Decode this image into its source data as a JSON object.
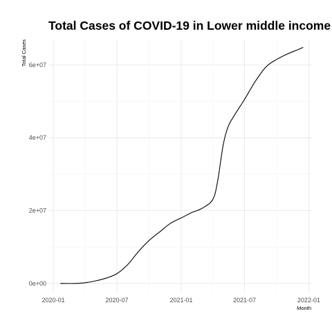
{
  "chart_data": {
    "type": "line",
    "title": "Total Cases of COVID-19 in Lower middle income",
    "xlabel": "Month",
    "ylabel": "Total Cases",
    "xlim": [
      "2019-12-20",
      "2022-01-10"
    ],
    "ylim": [
      -2500000,
      67000000
    ],
    "x_ticks": [
      "2020-01-01",
      "2020-07-01",
      "2021-01-01",
      "2021-07-01",
      "2022-01-01"
    ],
    "x_tick_labels": [
      "2020-01",
      "2020-07",
      "2021-01",
      "2021-07",
      "2022-01"
    ],
    "y_ticks": [
      0,
      20000000,
      40000000,
      60000000
    ],
    "y_tick_labels": [
      "0e+00",
      "2e+07",
      "4e+07",
      "6e+07"
    ],
    "grid": true,
    "legend": "none",
    "series": [
      {
        "color": "#000000",
        "x": [
          "2020-01-22",
          "2020-03-01",
          "2020-04-01",
          "2020-05-01",
          "2020-06-01",
          "2020-07-01",
          "2020-08-01",
          "2020-09-01",
          "2020-10-01",
          "2020-11-01",
          "2020-12-01",
          "2021-01-01",
          "2021-02-01",
          "2021-03-01",
          "2021-04-01",
          "2021-04-15",
          "2021-05-01",
          "2021-05-15",
          "2021-06-01",
          "2021-07-01",
          "2021-08-01",
          "2021-09-01",
          "2021-10-01",
          "2021-11-01",
          "2021-12-01",
          "2021-12-15"
        ],
        "values": [
          0,
          10000,
          200000,
          700000,
          1500000,
          2700000,
          5200000,
          8800000,
          11800000,
          14200000,
          16500000,
          18000000,
          19500000,
          20600000,
          23000000,
          28000000,
          38000000,
          43000000,
          46000000,
          50500000,
          55500000,
          59500000,
          61500000,
          63000000,
          64200000,
          64800000
        ]
      }
    ]
  }
}
